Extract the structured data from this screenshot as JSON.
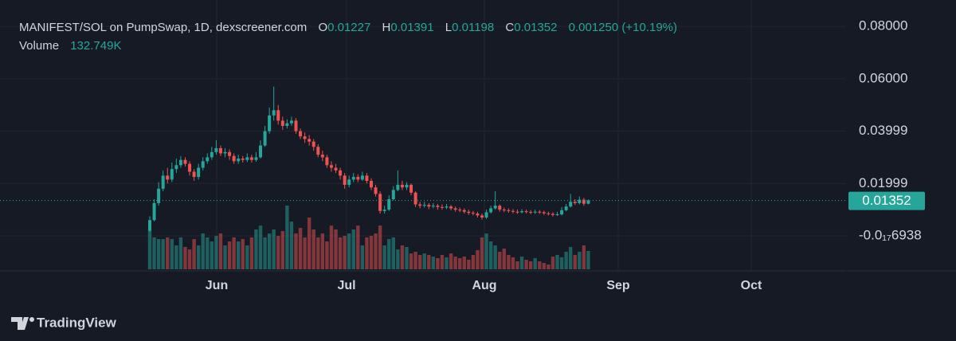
{
  "header": {
    "symbol": "MANIFEST/SOL on PumpSwap, 1D, dexscreener.com",
    "o_label": "O",
    "h_label": "H",
    "l_label": "L",
    "c_label": "C",
    "change": "0.001250 (+10.19%)",
    "volume_title": "Volume",
    "volume_value": "132.749K"
  },
  "chart_data": {
    "type": "candlestick",
    "open": [
      0.002,
      0.006,
      0.0125,
      0.018,
      0.023,
      0.0215,
      0.0255,
      0.027,
      0.029,
      0.0275,
      0.0245,
      0.0225,
      0.026,
      0.0285,
      0.03,
      0.032,
      0.0335,
      0.0315,
      0.032,
      0.0305,
      0.0285,
      0.0295,
      0.029,
      0.03,
      0.029,
      0.03,
      0.0345,
      0.04,
      0.046,
      0.048,
      0.044,
      0.042,
      0.043,
      0.044,
      0.04,
      0.038,
      0.037,
      0.036,
      0.034,
      0.031,
      0.03,
      0.027,
      0.026,
      0.025,
      0.023,
      0.0195,
      0.0215,
      0.0225,
      0.0215,
      0.023,
      0.021,
      0.0185,
      0.016,
      0.0095,
      0.01,
      0.014,
      0.0175,
      0.0195,
      0.0185,
      0.0195,
      0.0165,
      0.012,
      0.0115,
      0.0118,
      0.0112,
      0.0115,
      0.011,
      0.0108,
      0.0112,
      0.0105,
      0.01,
      0.0098,
      0.0092,
      0.0088,
      0.0085,
      0.0078,
      0.007,
      0.009,
      0.0105,
      0.0115,
      0.01,
      0.0098,
      0.0095,
      0.0092,
      0.009,
      0.0094,
      0.0091,
      0.0089,
      0.0092,
      0.009,
      0.0086,
      0.0084,
      0.008,
      0.0082,
      0.0098,
      0.0112,
      0.013,
      0.0125,
      0.0138,
      0.01227
    ],
    "high": [
      0.0075,
      0.014,
      0.0205,
      0.025,
      0.026,
      0.028,
      0.0295,
      0.0305,
      0.03,
      0.0285,
      0.0255,
      0.0275,
      0.03,
      0.0315,
      0.034,
      0.0365,
      0.0345,
      0.0335,
      0.033,
      0.0315,
      0.031,
      0.0305,
      0.0315,
      0.031,
      0.032,
      0.0365,
      0.042,
      0.049,
      0.057,
      0.05,
      0.0455,
      0.0445,
      0.0455,
      0.045,
      0.041,
      0.0395,
      0.0385,
      0.037,
      0.035,
      0.0325,
      0.031,
      0.0285,
      0.0275,
      0.026,
      0.024,
      0.023,
      0.024,
      0.0235,
      0.0245,
      0.024,
      0.022,
      0.0195,
      0.017,
      0.0115,
      0.0155,
      0.019,
      0.025,
      0.021,
      0.0205,
      0.02,
      0.017,
      0.013,
      0.013,
      0.0125,
      0.0125,
      0.0122,
      0.012,
      0.0122,
      0.0118,
      0.0112,
      0.0108,
      0.0105,
      0.01,
      0.0095,
      0.0092,
      0.0085,
      0.01,
      0.0115,
      0.017,
      0.012,
      0.0108,
      0.0105,
      0.0102,
      0.01,
      0.0102,
      0.01,
      0.0098,
      0.01,
      0.0098,
      0.0096,
      0.0092,
      0.009,
      0.0092,
      0.011,
      0.0122,
      0.016,
      0.014,
      0.015,
      0.0145,
      0.01391
    ],
    "low": [
      0.0015,
      0.0055,
      0.0115,
      0.017,
      0.02,
      0.0205,
      0.024,
      0.026,
      0.0265,
      0.023,
      0.021,
      0.0215,
      0.025,
      0.0275,
      0.029,
      0.031,
      0.0305,
      0.03,
      0.029,
      0.0275,
      0.0275,
      0.028,
      0.0282,
      0.028,
      0.0283,
      0.0295,
      0.034,
      0.039,
      0.044,
      0.0425,
      0.0405,
      0.041,
      0.042,
      0.039,
      0.037,
      0.0355,
      0.0345,
      0.0325,
      0.03,
      0.0285,
      0.026,
      0.0245,
      0.024,
      0.0215,
      0.018,
      0.0185,
      0.0205,
      0.0205,
      0.021,
      0.02,
      0.0175,
      0.015,
      0.0085,
      0.0085,
      0.0095,
      0.0135,
      0.017,
      0.0175,
      0.0175,
      0.0155,
      0.011,
      0.0105,
      0.0108,
      0.0102,
      0.0105,
      0.01,
      0.01,
      0.0102,
      0.0097,
      0.0092,
      0.009,
      0.0085,
      0.008,
      0.0078,
      0.007,
      0.0062,
      0.0065,
      0.0085,
      0.01,
      0.0092,
      0.009,
      0.0088,
      0.0086,
      0.0084,
      0.0086,
      0.0085,
      0.0083,
      0.0084,
      0.0084,
      0.008,
      0.0078,
      0.0074,
      0.0076,
      0.0078,
      0.0094,
      0.0108,
      0.0118,
      0.012,
      0.0115,
      0.01198
    ],
    "close": [
      0.006,
      0.0125,
      0.018,
      0.023,
      0.0215,
      0.0255,
      0.027,
      0.029,
      0.0275,
      0.0245,
      0.0225,
      0.026,
      0.0285,
      0.03,
      0.032,
      0.0335,
      0.0315,
      0.032,
      0.0305,
      0.0285,
      0.0295,
      0.029,
      0.03,
      0.029,
      0.03,
      0.0345,
      0.04,
      0.046,
      0.048,
      0.044,
      0.042,
      0.043,
      0.044,
      0.04,
      0.038,
      0.037,
      0.036,
      0.034,
      0.031,
      0.03,
      0.027,
      0.026,
      0.025,
      0.023,
      0.0195,
      0.0215,
      0.0225,
      0.0215,
      0.023,
      0.021,
      0.0185,
      0.016,
      0.0095,
      0.01,
      0.014,
      0.0175,
      0.0195,
      0.0185,
      0.0195,
      0.0165,
      0.012,
      0.0115,
      0.0118,
      0.0112,
      0.0115,
      0.011,
      0.0108,
      0.0112,
      0.0105,
      0.01,
      0.0098,
      0.0092,
      0.0088,
      0.0085,
      0.0078,
      0.007,
      0.009,
      0.0105,
      0.0115,
      0.01,
      0.0098,
      0.0095,
      0.0092,
      0.009,
      0.0094,
      0.0091,
      0.0089,
      0.0092,
      0.009,
      0.0086,
      0.0084,
      0.008,
      0.0082,
      0.0098,
      0.0112,
      0.013,
      0.0125,
      0.0138,
      0.01227,
      0.01352
    ],
    "volume": [
      289000,
      231000,
      219000,
      219000,
      231000,
      219000,
      173000,
      231000,
      162000,
      144000,
      219000,
      173000,
      260000,
      231000,
      202000,
      242000,
      260000,
      173000,
      202000,
      231000,
      202000,
      219000,
      173000,
      231000,
      289000,
      317000,
      231000,
      260000,
      289000,
      242000,
      277000,
      462000,
      346000,
      260000,
      300000,
      231000,
      375000,
      289000,
      231000,
      260000,
      202000,
      317000,
      289000,
      231000,
      242000,
      260000,
      289000,
      317000,
      173000,
      231000,
      242000,
      260000,
      317000,
      173000,
      219000,
      231000,
      144000,
      173000,
      162000,
      115000,
      127000,
      104000,
      115000,
      104000,
      92000,
      81000,
      104000,
      87000,
      115000,
      92000,
      81000,
      92000,
      69000,
      104000,
      139000,
      231000,
      260000,
      202000,
      173000,
      127000,
      150000,
      104000,
      87000,
      58000,
      92000,
      69000,
      58000,
      81000,
      58000,
      46000,
      35000,
      92000,
      104000,
      87000,
      127000,
      162000,
      104000,
      127000,
      173000,
      132749
    ],
    "ylim": [
      -0.0134,
      0.0901
    ],
    "yticks": [
      {
        "value": 0.08,
        "label": "0.08000"
      },
      {
        "value": 0.06,
        "label": "0.06000"
      },
      0.03999,
      0.01999,
      {
        "value": -6.938e-18,
        "label": "-0.0₁₇6938"
      }
    ],
    "month_labels": [
      "Jun",
      "Jul",
      "Aug",
      "Sep",
      "Oct"
    ],
    "up_color": "#26a69a",
    "down_color": "#ef5350",
    "grid": true
  },
  "footer": {
    "brand": "TradingView"
  }
}
